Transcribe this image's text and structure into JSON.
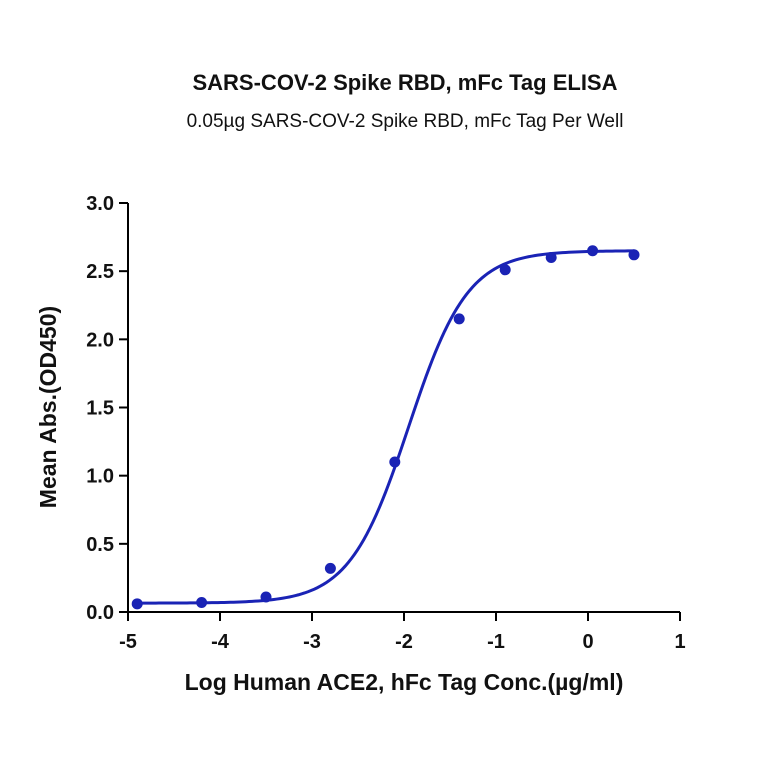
{
  "chart_data": {
    "type": "scatter",
    "title": "SARS-COV-2 Spike RBD, mFc Tag ELISA",
    "subtitle": "0.05µg SARS-COV-2 Spike RBD, mFc Tag Per Well",
    "xlabel": "Log Human ACE2, hFc Tag Conc.(µg/ml)",
    "ylabel": "Mean Abs.(OD450)",
    "xlim": [
      -5,
      1
    ],
    "ylim": [
      0,
      3.0
    ],
    "x_ticks": [
      "-5",
      "-4",
      "-3",
      "-2",
      "-1",
      "0",
      "1"
    ],
    "y_ticks": [
      "0.0",
      "0.5",
      "1.0",
      "1.5",
      "2.0",
      "2.5",
      "3.0"
    ],
    "grid": false,
    "legend": "none",
    "series": [
      {
        "x": [
          -4.9,
          -4.2,
          -3.5,
          -2.8,
          -2.1,
          -1.4,
          -0.9,
          -0.4,
          0.05,
          0.5
        ],
        "y": [
          0.06,
          0.07,
          0.11,
          0.32,
          1.1,
          2.15,
          2.51,
          2.6,
          2.65,
          2.62
        ],
        "fit": {
          "bottom": 0.065,
          "top": 2.65,
          "logEC50": -1.95,
          "hill": 1.35
        },
        "color": "#1a23b5"
      }
    ]
  }
}
